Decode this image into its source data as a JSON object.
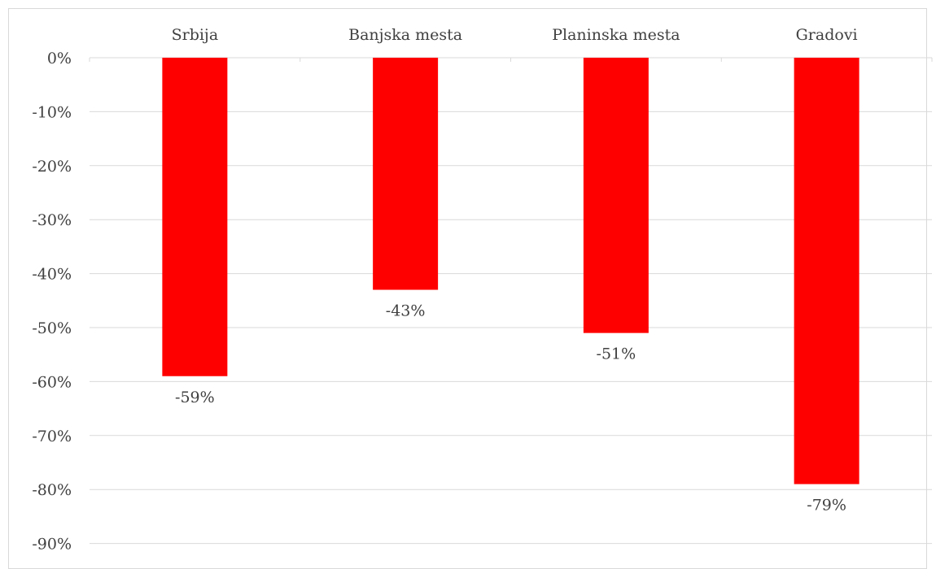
{
  "chart_data": {
    "type": "bar",
    "categories": [
      "Srbija",
      "Banjska mesta",
      "Planinska mesta",
      "Gradovi"
    ],
    "values": [
      -59,
      -43,
      -51,
      -79
    ],
    "data_labels": [
      "-59%",
      "-43%",
      "-51%",
      "-79%"
    ],
    "ylim": [
      -90,
      0
    ],
    "yticks": [
      0,
      -10,
      -20,
      -30,
      -40,
      -50,
      -60,
      -70,
      -80,
      -90
    ],
    "ytick_labels": [
      "0%",
      "-10%",
      "-20%",
      "-30%",
      "-40%",
      "-50%",
      "-60%",
      "-70%",
      "-80%",
      "-90%"
    ],
    "category_axis_position": "top",
    "grid": true,
    "bar_color": "#ff0000",
    "gridline_color": "#d9d9d9",
    "text_color": "#404040"
  }
}
